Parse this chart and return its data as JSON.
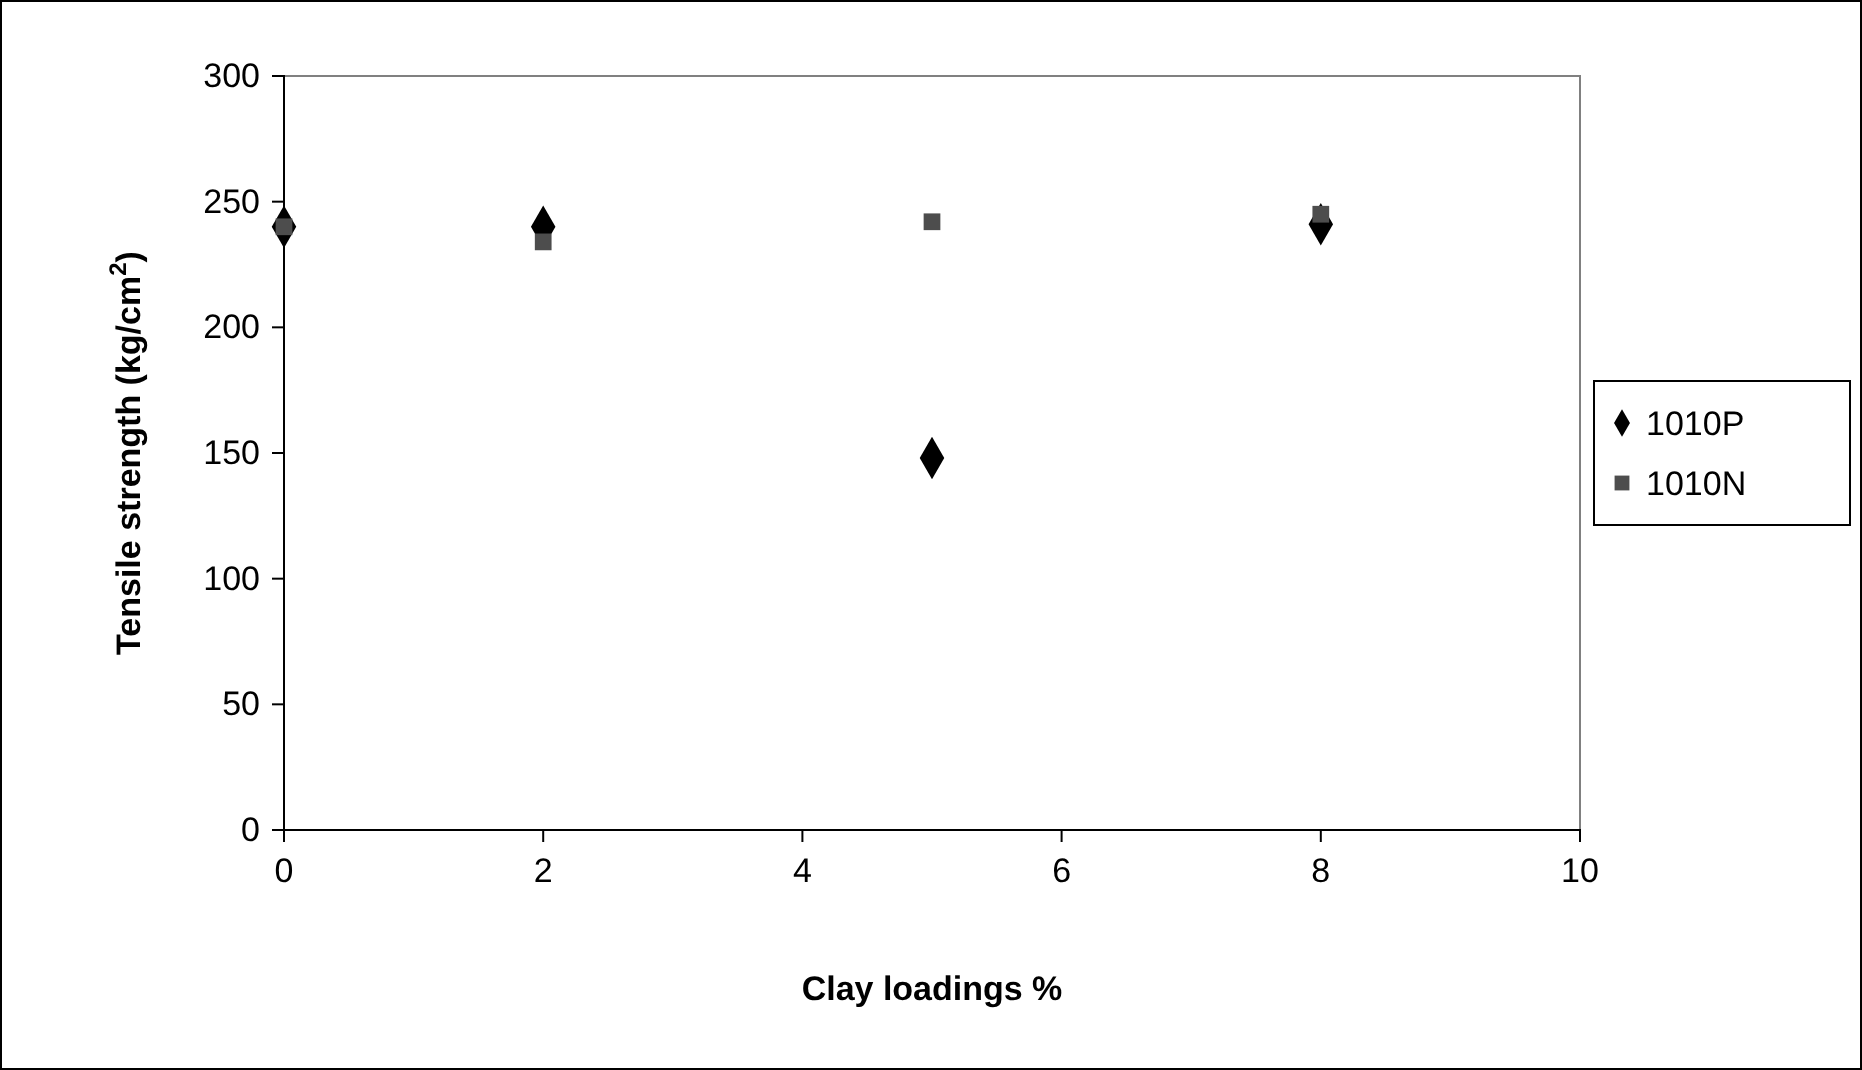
{
  "chart_data": {
    "type": "scatter",
    "xlabel": "Clay loadings %",
    "ylabel": "Tensile strength (kg/cm$^{2}$)",
    "xlim": [
      0,
      10
    ],
    "xticks": [
      0,
      2,
      4,
      6,
      8,
      10
    ],
    "ylim": [
      0,
      300
    ],
    "yticks": [
      0,
      50,
      100,
      150,
      200,
      250,
      300
    ],
    "grid": false,
    "legend": "right",
    "series": [
      {
        "name": "1010P",
        "color": "#000000",
        "marker": "diamond",
        "x": [
          0,
          2,
          5,
          8
        ],
        "values": [
          240,
          240,
          148,
          241
        ]
      },
      {
        "name": "1010N",
        "color": "#4d4d4d",
        "marker": "square",
        "x": [
          0,
          2,
          5,
          8
        ],
        "values": [
          240,
          234,
          242,
          245
        ]
      }
    ]
  }
}
